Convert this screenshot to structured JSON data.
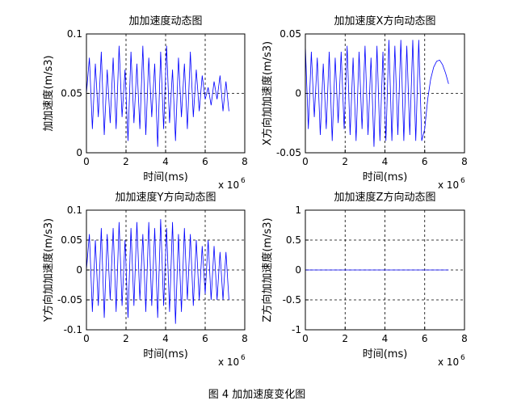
{
  "chart_data": [
    {
      "type": "line",
      "title": "加加速度动态图",
      "xlabel": "时间(ms)",
      "ylabel": "加加速度(m/s3)",
      "xscale_label": "x 10",
      "xscale_exponent": "6",
      "xlim": [
        0,
        8
      ],
      "xticks": [
        0,
        2,
        4,
        6,
        8
      ],
      "ylim": [
        0,
        0.1
      ],
      "yticks": [
        0,
        0.05,
        0.1
      ],
      "grid": true,
      "color": "#0000ff",
      "x": [
        0,
        0.15,
        0.3,
        0.45,
        0.6,
        0.75,
        0.9,
        1.05,
        1.2,
        1.35,
        1.5,
        1.65,
        1.8,
        1.95,
        2.1,
        2.25,
        2.4,
        2.55,
        2.7,
        2.85,
        3,
        3.15,
        3.3,
        3.45,
        3.6,
        3.75,
        3.9,
        4.05,
        4.2,
        4.35,
        4.5,
        4.65,
        4.8,
        4.95,
        5.1,
        5.25,
        5.4,
        5.55,
        5.7,
        5.85,
        6,
        6.15,
        6.3,
        6.45,
        6.6,
        6.75,
        6.9,
        7.05,
        7.2
      ],
      "values": [
        0.05,
        0.08,
        0.02,
        0.075,
        0.03,
        0.085,
        0.015,
        0.07,
        0.025,
        0.08,
        0.02,
        0.09,
        0.03,
        0.07,
        0.01,
        0.085,
        0.025,
        0.075,
        0.02,
        0.09,
        0.015,
        0.08,
        0.03,
        0.075,
        0.005,
        0.085,
        0.02,
        0.09,
        0.025,
        0.07,
        0.01,
        0.08,
        0.03,
        0.075,
        0.02,
        0.085,
        0.03,
        0.07,
        0.035,
        0.065,
        0.045,
        0.055,
        0.04,
        0.06,
        0.045,
        0.065,
        0.035,
        0.06,
        0.035
      ]
    },
    {
      "type": "line",
      "title": "加加速度X方向动态图",
      "xlabel": "时间(ms)",
      "ylabel": "X方向加加速度(m/s3)",
      "xscale_label": "x 10",
      "xscale_exponent": "6",
      "xlim": [
        0,
        8
      ],
      "xticks": [
        0,
        2,
        4,
        6,
        8
      ],
      "ylim": [
        -0.05,
        0.05
      ],
      "yticks": [
        -0.05,
        0,
        0.05
      ],
      "grid": true,
      "color": "#0000ff",
      "x": [
        0,
        0.15,
        0.3,
        0.45,
        0.6,
        0.75,
        0.9,
        1.05,
        1.2,
        1.35,
        1.5,
        1.65,
        1.8,
        1.95,
        2.1,
        2.25,
        2.4,
        2.55,
        2.7,
        2.85,
        3,
        3.15,
        3.3,
        3.45,
        3.6,
        3.75,
        3.9,
        4.05,
        4.2,
        4.35,
        4.5,
        4.65,
        4.8,
        4.95,
        5.1,
        5.25,
        5.4,
        5.55,
        5.7,
        5.85,
        6,
        6.15,
        6.3,
        6.45,
        6.6,
        6.75,
        6.9,
        7.05,
        7.2
      ],
      "values": [
        0.04,
        -0.03,
        0.035,
        -0.02,
        0.03,
        -0.035,
        0.025,
        -0.03,
        0.035,
        -0.04,
        0.03,
        -0.025,
        0.035,
        -0.03,
        0.04,
        -0.035,
        0.03,
        -0.04,
        0.035,
        -0.03,
        0.04,
        -0.035,
        0.03,
        -0.045,
        0.04,
        -0.04,
        0.035,
        -0.04,
        0.045,
        -0.04,
        0.04,
        -0.035,
        0.045,
        -0.04,
        0.04,
        -0.035,
        0.045,
        -0.04,
        0.045,
        -0.04,
        -0.03,
        -0.005,
        0.012,
        0.022,
        0.027,
        0.028,
        0.024,
        0.017,
        0.008
      ]
    },
    {
      "type": "line",
      "title": "加加速度Y方向动态图",
      "xlabel": "时间(ms)",
      "ylabel": "Y方向加加速度(m/s3)",
      "xscale_label": "x 10",
      "xscale_exponent": "6",
      "xlim": [
        0,
        8
      ],
      "xticks": [
        0,
        2,
        4,
        6,
        8
      ],
      "ylim": [
        -0.1,
        0.1
      ],
      "yticks": [
        -0.1,
        -0.05,
        0,
        0.05,
        0.1
      ],
      "grid": true,
      "color": "#0000ff",
      "x": [
        0,
        0.15,
        0.3,
        0.45,
        0.6,
        0.75,
        0.9,
        1.05,
        1.2,
        1.35,
        1.5,
        1.65,
        1.8,
        1.95,
        2.1,
        2.25,
        2.4,
        2.55,
        2.7,
        2.85,
        3,
        3.15,
        3.3,
        3.45,
        3.6,
        3.75,
        3.9,
        4.05,
        4.2,
        4.35,
        4.5,
        4.65,
        4.8,
        4.95,
        5.1,
        5.25,
        5.4,
        5.55,
        5.7,
        5.85,
        6,
        6.15,
        6.3,
        6.45,
        6.6,
        6.75,
        6.9,
        7.05,
        7.2
      ],
      "values": [
        0,
        0.06,
        -0.07,
        0.05,
        -0.06,
        0.07,
        -0.08,
        0.06,
        -0.05,
        0.07,
        -0.07,
        0.08,
        -0.06,
        0.05,
        -0.08,
        0.07,
        -0.06,
        0.08,
        -0.05,
        0.06,
        -0.07,
        0.08,
        -0.06,
        0.07,
        -0.08,
        0.085,
        -0.06,
        0.07,
        -0.07,
        0.08,
        -0.09,
        0.06,
        -0.07,
        0.07,
        -0.05,
        0.06,
        -0.06,
        0.05,
        -0.05,
        0.04,
        -0.04,
        0.05,
        -0.05,
        0.04,
        -0.05,
        0.03,
        -0.05,
        0.03,
        -0.05
      ]
    },
    {
      "type": "line",
      "title": "加加速度Z方向动态图",
      "xlabel": "时间(ms)",
      "ylabel": "Z方向加加速度(m/s3)",
      "xscale_label": "x 10",
      "xscale_exponent": "6",
      "xlim": [
        0,
        8
      ],
      "xticks": [
        0,
        2,
        4,
        6,
        8
      ],
      "ylim": [
        -1,
        1
      ],
      "yticks": [
        -1,
        -0.5,
        0,
        0.5,
        1
      ],
      "grid": true,
      "color": "#0000ff",
      "x": [
        0,
        7.2
      ],
      "values": [
        0,
        0
      ]
    }
  ],
  "caption": "图 4  加加速度变化图"
}
